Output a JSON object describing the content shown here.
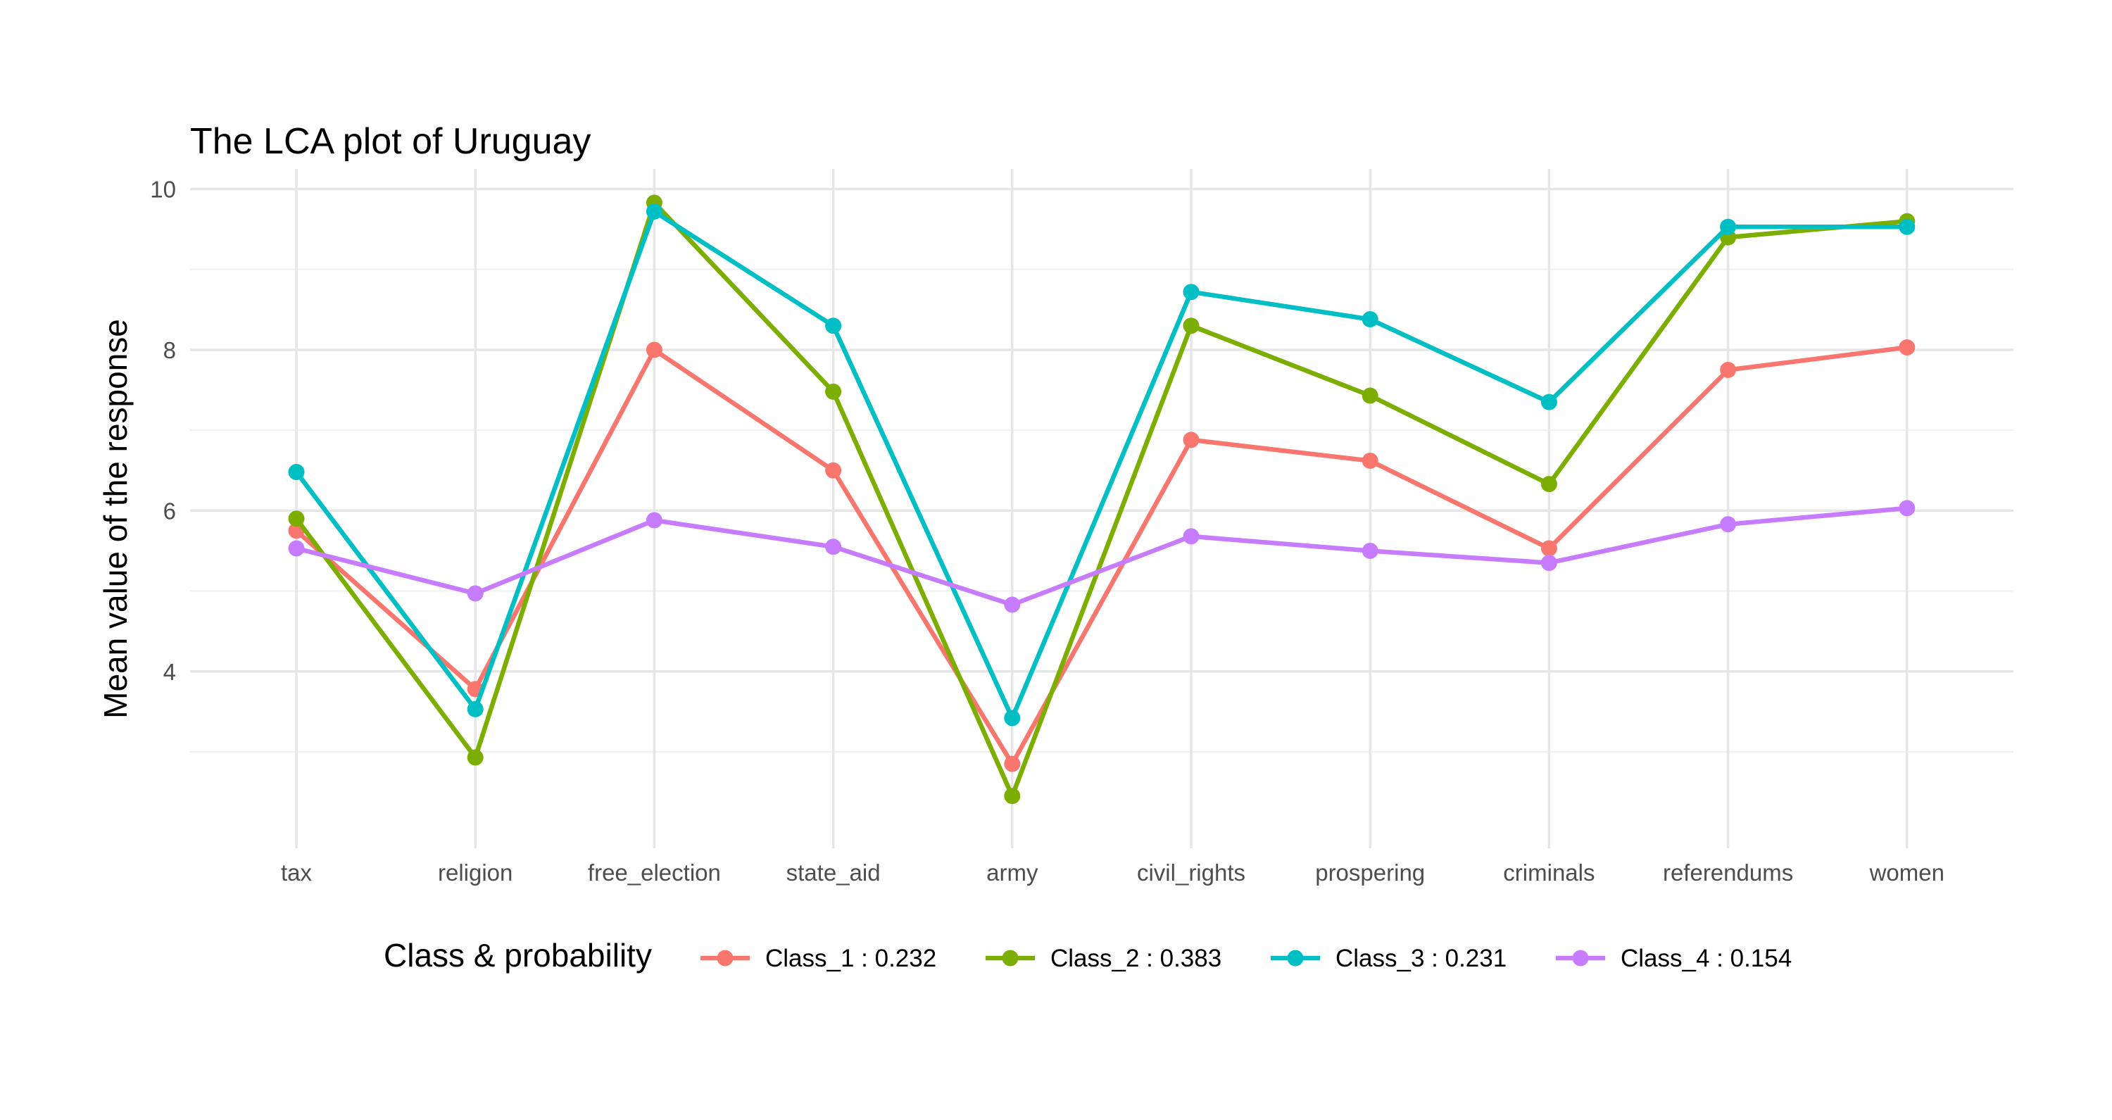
{
  "chart_data": {
    "type": "line",
    "title": "The LCA plot of Uruguay",
    "xlabel": "",
    "ylabel": "Mean value of the response",
    "categories": [
      "tax",
      "religion",
      "free_election",
      "state_aid",
      "army",
      "civil_rights",
      "prospering",
      "criminals",
      "referendums",
      "women"
    ],
    "ylim": [
      1.8,
      10.25
    ],
    "yticks": [
      4,
      6,
      8,
      10
    ],
    "grid": true,
    "legend": {
      "title": "Class & probability",
      "position": "bottom"
    },
    "series": [
      {
        "name": "Class_1 : 0.232",
        "color": "#F8766D",
        "values": [
          5.75,
          3.78,
          8.0,
          6.5,
          2.85,
          6.88,
          6.62,
          5.53,
          7.75,
          8.03
        ]
      },
      {
        "name": "Class_2 : 0.383",
        "color": "#7CAE00",
        "values": [
          5.9,
          2.93,
          9.83,
          7.48,
          2.45,
          8.3,
          7.43,
          6.33,
          9.4,
          9.6
        ]
      },
      {
        "name": "Class_3 : 0.231",
        "color": "#00BFC4",
        "values": [
          6.48,
          3.53,
          9.72,
          8.3,
          3.42,
          8.72,
          8.38,
          7.35,
          9.53,
          9.53
        ]
      },
      {
        "name": "Class_4 : 0.154",
        "color": "#C77CFF",
        "values": [
          5.53,
          4.97,
          5.88,
          5.55,
          4.83,
          5.68,
          5.5,
          5.35,
          5.83,
          6.03
        ]
      }
    ]
  }
}
